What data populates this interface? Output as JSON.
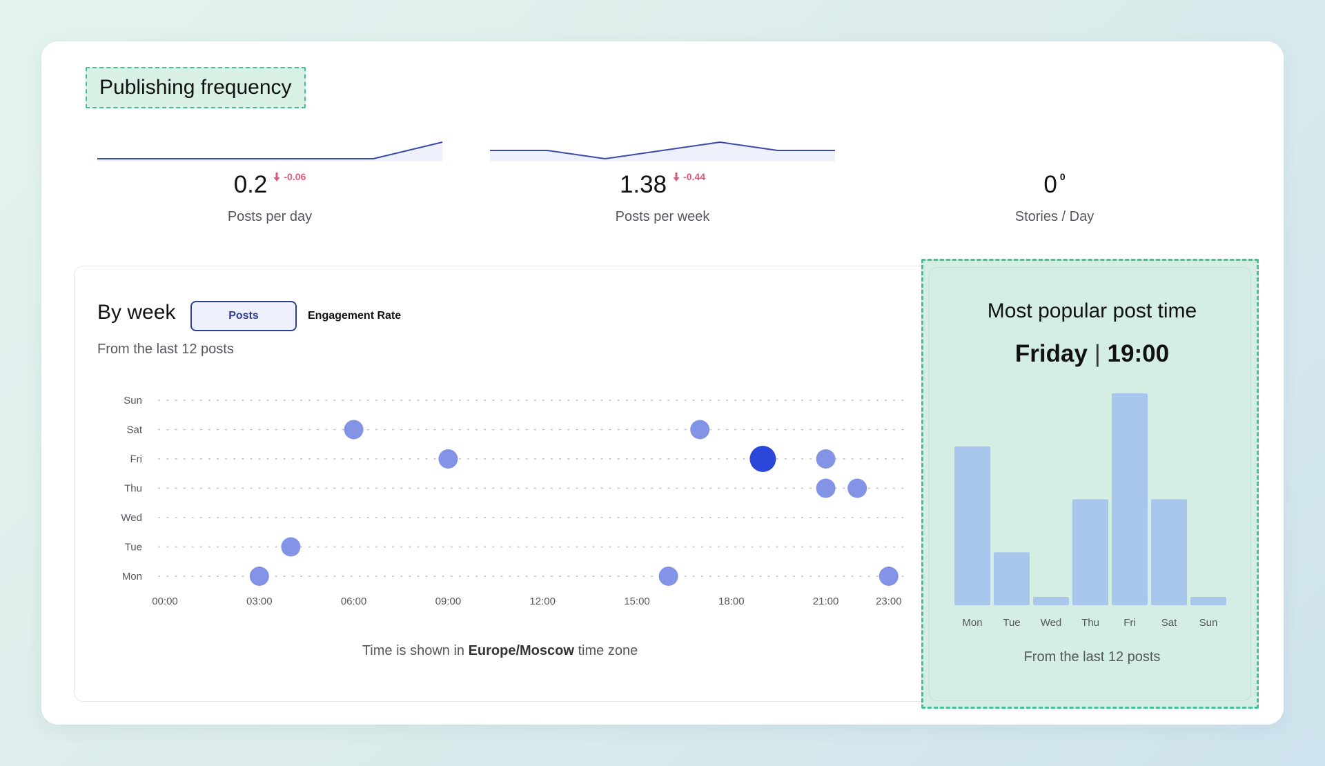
{
  "section_title": "Publishing frequency",
  "colors": {
    "accent": "#2e3f8f",
    "bubble": "#8394e6",
    "bubble_highlight": "#2b47d9",
    "bar": "#a9c7ec",
    "negative_delta": "#e05a78",
    "highlight_bg": "#d4eee3",
    "highlight_border": "#43c096"
  },
  "metrics": [
    {
      "value": "0.2",
      "delta": "-0.06",
      "delta_icon": "arrow-down-icon",
      "label": "Posts per day"
    },
    {
      "value": "1.38",
      "delta": "-0.44",
      "delta_icon": "arrow-down-icon",
      "label": "Posts per week"
    },
    {
      "value": "0",
      "delta": "0",
      "label": "Stories / Day"
    }
  ],
  "by_week": {
    "title": "By week",
    "tabs": [
      {
        "label": "Posts",
        "active": true
      },
      {
        "label": "Engagement Rate",
        "active": false
      }
    ],
    "subtitle": "From the last 12 posts",
    "timezone_note": {
      "prefix": "Time is shown in ",
      "zone": "Europe/Moscow",
      "suffix": " time zone"
    }
  },
  "popular": {
    "title": "Most popular post time",
    "day": "Friday",
    "separator": "|",
    "time": "19:00",
    "subtitle": "From the last 12 posts"
  },
  "chart_data": [
    {
      "type": "scatter",
      "y_categories": [
        "Mon",
        "Tue",
        "Wed",
        "Thu",
        "Fri",
        "Sat",
        "Sun"
      ],
      "x_ticks": [
        "00:00",
        "03:00",
        "06:00",
        "09:00",
        "12:00",
        "15:00",
        "18:00",
        "21:00",
        "23:00"
      ],
      "x_range": [
        0,
        23
      ],
      "grid": "dotted",
      "points": [
        {
          "day": "Mon",
          "hour": 3
        },
        {
          "day": "Mon",
          "hour": 16
        },
        {
          "day": "Mon",
          "hour": 23
        },
        {
          "day": "Tue",
          "hour": 4
        },
        {
          "day": "Thu",
          "hour": 21
        },
        {
          "day": "Thu",
          "hour": 22
        },
        {
          "day": "Fri",
          "hour": 9
        },
        {
          "day": "Fri",
          "hour": 19,
          "highlight": true
        },
        {
          "day": "Fri",
          "hour": 21
        },
        {
          "day": "Sat",
          "hour": 6
        },
        {
          "day": "Sat",
          "hour": 17
        }
      ]
    },
    {
      "type": "bar",
      "categories": [
        "Mon",
        "Tue",
        "Wed",
        "Thu",
        "Fri",
        "Sat",
        "Sun"
      ],
      "values": [
        3,
        1,
        0,
        2,
        4,
        2,
        0
      ],
      "ylim": [
        0,
        4
      ]
    },
    {
      "type": "line",
      "categories": [
        1,
        2,
        3,
        4,
        5,
        6
      ],
      "values": [
        0,
        0,
        0,
        0,
        0,
        1
      ]
    },
    {
      "type": "line",
      "categories": [
        1,
        2,
        3,
        4,
        5,
        6,
        7
      ],
      "values": [
        1,
        1,
        0,
        1,
        2,
        1,
        1
      ]
    }
  ]
}
